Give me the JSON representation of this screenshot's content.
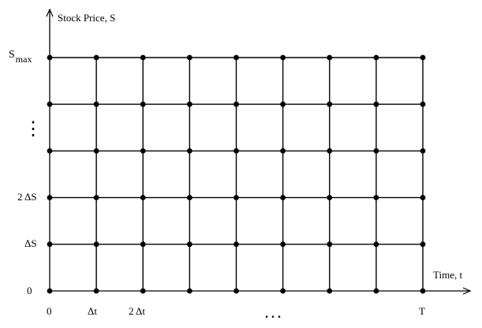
{
  "diagram": {
    "y_axis_label": "Stock Price, S",
    "x_axis_label": "Time, t",
    "y_labels": {
      "s_max_base": "S",
      "s_max_sub": "max",
      "vdots": "⋮",
      "two_delta_s": "2 ΔS",
      "delta_s": "ΔS",
      "zero": "0"
    },
    "x_labels": {
      "zero": "0",
      "delta_t": "Δt",
      "two_delta_t": "2 Δt",
      "ellipsis": ". . .",
      "T": "T"
    },
    "grid": {
      "columns": 9,
      "rows": 6,
      "line_color": "#000000",
      "node_color": "#000000"
    }
  }
}
